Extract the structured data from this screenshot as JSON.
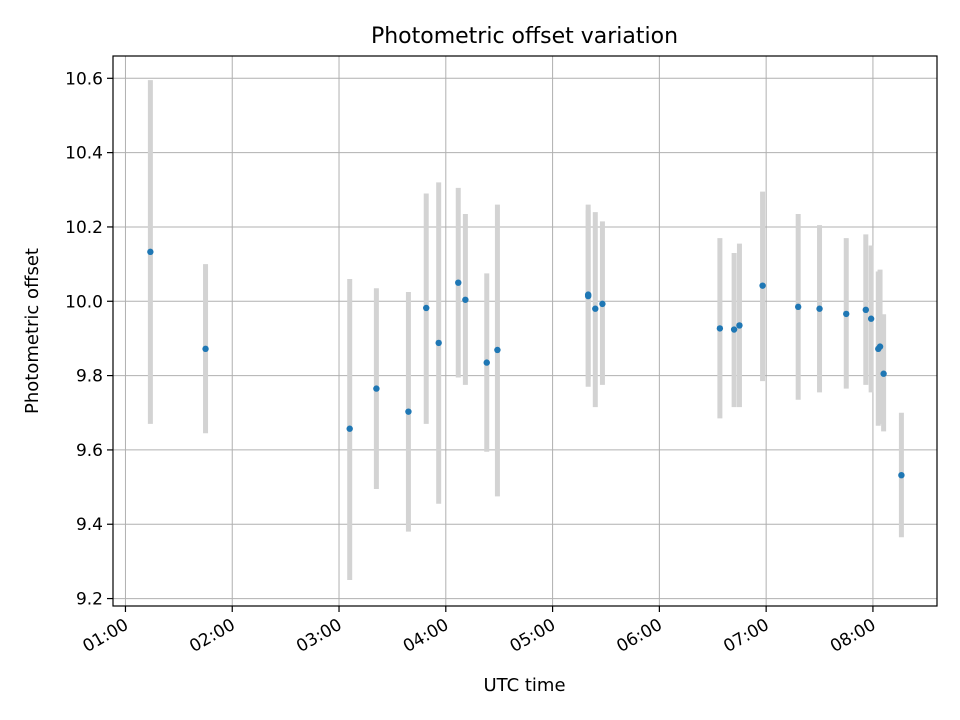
{
  "chart_data": {
    "type": "scatter",
    "title": "Photometric offset variation",
    "xlabel": "UTC time",
    "ylabel": "Photometric offset",
    "x_unit": "hours UTC",
    "xlim": [
      "00:53",
      "08:36"
    ],
    "ylim": [
      9.18,
      10.66
    ],
    "grid": true,
    "x_ticks": [
      "01:00",
      "02:00",
      "03:00",
      "04:00",
      "05:00",
      "06:00",
      "07:00",
      "08:00"
    ],
    "y_ticks": [
      "9.2",
      "9.4",
      "9.6",
      "9.8",
      "10.0",
      "10.2",
      "10.4",
      "10.6"
    ],
    "errorbar_color": "#d3d3d3",
    "point_color": "#1f77b4",
    "points": [
      {
        "x": "01:14",
        "y": 10.133,
        "lo": 9.67,
        "hi": 10.595
      },
      {
        "x": "01:45",
        "y": 9.872,
        "lo": 9.645,
        "hi": 10.1
      },
      {
        "x": "03:06",
        "y": 9.657,
        "lo": 9.25,
        "hi": 10.06
      },
      {
        "x": "03:21",
        "y": 9.765,
        "lo": 9.495,
        "hi": 10.035
      },
      {
        "x": "03:39",
        "y": 9.703,
        "lo": 9.38,
        "hi": 10.025
      },
      {
        "x": "03:49",
        "y": 9.982,
        "lo": 9.67,
        "hi": 10.29
      },
      {
        "x": "03:56",
        "y": 9.888,
        "lo": 9.455,
        "hi": 10.32
      },
      {
        "x": "04:07",
        "y": 10.05,
        "lo": 9.795,
        "hi": 10.305
      },
      {
        "x": "04:11",
        "y": 10.004,
        "lo": 9.775,
        "hi": 10.235
      },
      {
        "x": "04:23",
        "y": 9.835,
        "lo": 9.595,
        "hi": 10.075
      },
      {
        "x": "04:29",
        "y": 9.869,
        "lo": 9.475,
        "hi": 10.26
      },
      {
        "x": "05:20",
        "y": 10.014,
        "lo": 9.77,
        "hi": 10.26
      },
      {
        "x": "05:20",
        "y": 10.018,
        "lo": 9.79,
        "hi": 10.245
      },
      {
        "x": "05:24",
        "y": 9.98,
        "lo": 9.715,
        "hi": 10.24
      },
      {
        "x": "05:28",
        "y": 9.993,
        "lo": 9.775,
        "hi": 10.215
      },
      {
        "x": "06:34",
        "y": 9.927,
        "lo": 9.685,
        "hi": 10.17
      },
      {
        "x": "06:42",
        "y": 9.924,
        "lo": 9.715,
        "hi": 10.13
      },
      {
        "x": "06:45",
        "y": 9.935,
        "lo": 9.715,
        "hi": 10.155
      },
      {
        "x": "06:58",
        "y": 10.042,
        "lo": 9.785,
        "hi": 10.295
      },
      {
        "x": "07:18",
        "y": 9.985,
        "lo": 9.735,
        "hi": 10.235
      },
      {
        "x": "07:30",
        "y": 9.98,
        "lo": 9.755,
        "hi": 10.205
      },
      {
        "x": "07:45",
        "y": 9.966,
        "lo": 9.765,
        "hi": 10.17
      },
      {
        "x": "07:56",
        "y": 9.977,
        "lo": 9.775,
        "hi": 10.18
      },
      {
        "x": "07:59",
        "y": 9.953,
        "lo": 9.755,
        "hi": 10.15
      },
      {
        "x": "08:03",
        "y": 9.872,
        "lo": 9.665,
        "hi": 10.08
      },
      {
        "x": "08:04",
        "y": 9.878,
        "lo": 9.67,
        "hi": 10.085
      },
      {
        "x": "08:06",
        "y": 9.805,
        "lo": 9.65,
        "hi": 9.965
      },
      {
        "x": "08:16",
        "y": 9.532,
        "lo": 9.365,
        "hi": 9.7
      }
    ]
  }
}
